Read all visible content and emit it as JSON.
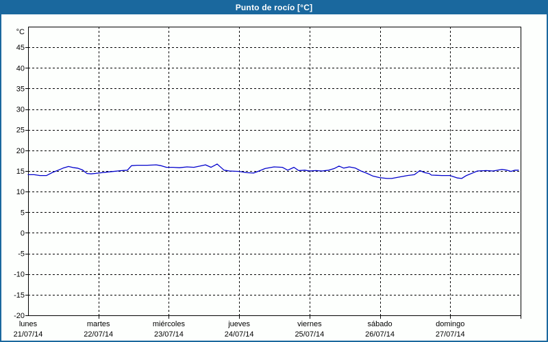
{
  "header": {
    "title": "Punto de rocío [°C]"
  },
  "colors": {
    "frame_and_titlebar": "#1a689e",
    "title_text": "#ffffff",
    "plot_background": "#fdfffd",
    "grid": "#000000",
    "axis": "#000000",
    "series_line": "#0000cc"
  },
  "chart_data": {
    "type": "line",
    "title": "Punto de rocío [°C]",
    "xlabel": "",
    "ylabel": "°C",
    "y_unit_label": "°C",
    "ylim": [
      -20,
      50
    ],
    "y_tick_step": 5,
    "y_ticks": [
      45,
      40,
      35,
      30,
      25,
      20,
      15,
      10,
      5,
      0,
      -5,
      -10,
      -15,
      -20
    ],
    "grid": "dashed",
    "legend_position": "none",
    "x_days": [
      {
        "name": "lunes",
        "date": "21/07/14"
      },
      {
        "name": "martes",
        "date": "22/07/14"
      },
      {
        "name": "miércoles",
        "date": "23/07/14"
      },
      {
        "name": "jueves",
        "date": "24/07/14"
      },
      {
        "name": "viernes",
        "date": "25/07/14"
      },
      {
        "name": "sábado",
        "date": "26/07/14"
      },
      {
        "name": "domingo",
        "date": "27/07/14"
      }
    ],
    "series": [
      {
        "name": "Punto de rocío",
        "color": "#0000cc",
        "points": [
          [
            0.0,
            14.1
          ],
          [
            0.088,
            14.1
          ],
          [
            0.166,
            13.9
          ],
          [
            0.263,
            13.9
          ],
          [
            0.341,
            14.6
          ],
          [
            0.428,
            15.2
          ],
          [
            0.497,
            15.7
          ],
          [
            0.574,
            16.1
          ],
          [
            0.652,
            15.8
          ],
          [
            0.701,
            15.7
          ],
          [
            0.769,
            15.3
          ],
          [
            0.837,
            14.4
          ],
          [
            0.896,
            14.3
          ],
          [
            1.0,
            14.5
          ],
          [
            1.159,
            14.8
          ],
          [
            1.334,
            15.1
          ],
          [
            1.412,
            15.2
          ],
          [
            1.47,
            16.3
          ],
          [
            1.548,
            16.4
          ],
          [
            1.694,
            16.4
          ],
          [
            1.821,
            16.5
          ],
          [
            1.889,
            16.3
          ],
          [
            1.967,
            15.9
          ],
          [
            2.054,
            15.9
          ],
          [
            2.152,
            15.8
          ],
          [
            2.259,
            16.0
          ],
          [
            2.356,
            15.9
          ],
          [
            2.444,
            16.2
          ],
          [
            2.522,
            16.5
          ],
          [
            2.6,
            15.9
          ],
          [
            2.687,
            16.7
          ],
          [
            2.785,
            15.2
          ],
          [
            2.863,
            15.0
          ],
          [
            3.0,
            14.9
          ],
          [
            3.106,
            14.6
          ],
          [
            3.204,
            14.5
          ],
          [
            3.282,
            15.0
          ],
          [
            3.369,
            15.6
          ],
          [
            3.496,
            16.0
          ],
          [
            3.613,
            15.9
          ],
          [
            3.69,
            15.2
          ],
          [
            3.778,
            15.9
          ],
          [
            3.846,
            15.1
          ],
          [
            3.934,
            15.2
          ],
          [
            4.0,
            15.0
          ],
          [
            4.088,
            15.1
          ],
          [
            4.176,
            15.0
          ],
          [
            4.273,
            15.2
          ],
          [
            4.351,
            15.6
          ],
          [
            4.419,
            16.2
          ],
          [
            4.487,
            15.7
          ],
          [
            4.565,
            16.0
          ],
          [
            4.653,
            15.7
          ],
          [
            4.731,
            15.0
          ],
          [
            4.808,
            14.5
          ],
          [
            4.896,
            13.8
          ],
          [
            4.993,
            13.4
          ],
          [
            5.1,
            13.2
          ],
          [
            5.169,
            13.2
          ],
          [
            5.266,
            13.5
          ],
          [
            5.392,
            13.9
          ],
          [
            5.49,
            14.1
          ],
          [
            5.568,
            15.1
          ],
          [
            5.636,
            14.6
          ],
          [
            5.7,
            14.4
          ],
          [
            5.733,
            14.0
          ],
          [
            5.879,
            13.9
          ],
          [
            5.996,
            13.9
          ],
          [
            6.103,
            13.3
          ],
          [
            6.162,
            13.2
          ],
          [
            6.23,
            13.9
          ],
          [
            6.288,
            14.3
          ],
          [
            6.386,
            15.0
          ],
          [
            6.512,
            15.1
          ],
          [
            6.61,
            15.0
          ],
          [
            6.736,
            15.4
          ],
          [
            6.804,
            15.2
          ],
          [
            6.863,
            14.9
          ],
          [
            6.921,
            15.2
          ],
          [
            6.97,
            15.2
          ]
        ]
      }
    ]
  }
}
